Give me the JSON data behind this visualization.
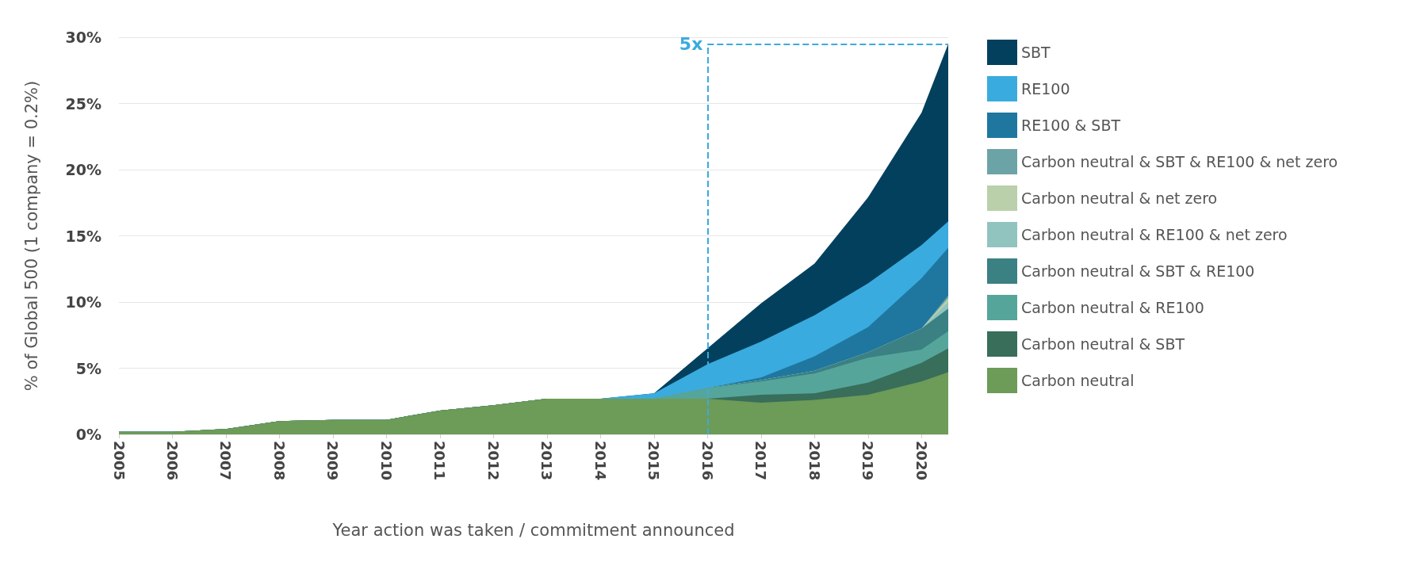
{
  "chart_data": {
    "type": "area",
    "stacked": true,
    "ylabel": "% of Global 500 (1 company = 0.2%)",
    "xlabel": "Year action was taken / commitment announced",
    "x": [
      2005,
      2006,
      2007,
      2008,
      2009,
      2010,
      2011,
      2012,
      2013,
      2014,
      2015,
      2016,
      2017,
      2018,
      2019,
      2020,
      2020.5
    ],
    "xlim": [
      2005,
      2020.5
    ],
    "xticks": [
      2005,
      2006,
      2007,
      2008,
      2009,
      2010,
      2011,
      2012,
      2013,
      2014,
      2015,
      2016,
      2017,
      2018,
      2019,
      2020
    ],
    "ylim": [
      0,
      30
    ],
    "yticks": [
      {
        "value": 0,
        "label": "0%"
      },
      {
        "value": 5,
        "label": "5%"
      },
      {
        "value": 10,
        "label": "10%"
      },
      {
        "value": 15,
        "label": "15%"
      },
      {
        "value": 20,
        "label": "20%"
      },
      {
        "value": 25,
        "label": "25%"
      },
      {
        "value": 30,
        "label": "30%"
      }
    ],
    "grid": "y",
    "legend": "right",
    "series": [
      {
        "name": "Carbon neutral",
        "color": "#6d9b58",
        "values": [
          0.2,
          0.2,
          0.4,
          1.0,
          1.1,
          1.1,
          1.8,
          2.2,
          2.7,
          2.7,
          2.7,
          2.7,
          2.4,
          2.6,
          3.0,
          4.0,
          4.7
        ]
      },
      {
        "name": "Carbon neutral & SBT",
        "color": "#386e5a",
        "values": [
          0,
          0,
          0,
          0,
          0,
          0,
          0,
          0,
          0,
          0,
          0,
          0,
          0.6,
          0.5,
          0.9,
          1.4,
          1.8
        ]
      },
      {
        "name": "Carbon neutral & RE100",
        "color": "#55a59b",
        "values": [
          0,
          0,
          0,
          0,
          0,
          0,
          0,
          0,
          0,
          0,
          0,
          0.8,
          1.0,
          1.5,
          1.9,
          1.0,
          1.3
        ]
      },
      {
        "name": "Carbon neutral & SBT & RE100",
        "color": "#3b8083",
        "values": [
          0,
          0,
          0,
          0,
          0,
          0,
          0,
          0,
          0,
          0,
          0,
          0,
          0.1,
          0.2,
          0.4,
          1.6,
          1.7
        ]
      },
      {
        "name": "Carbon neutral & RE100 & net zero",
        "color": "#91c4be",
        "values": [
          0,
          0,
          0,
          0,
          0,
          0,
          0,
          0,
          0,
          0,
          0,
          0,
          0,
          0,
          0,
          0,
          0.5
        ]
      },
      {
        "name": "Carbon neutral & net zero",
        "color": "#b9d0ab",
        "values": [
          0,
          0,
          0,
          0,
          0,
          0,
          0,
          0,
          0,
          0,
          0,
          0,
          0,
          0,
          0,
          0,
          0.3
        ]
      },
      {
        "name": "Carbon neutral & SBT & RE100 & net zero",
        "color": "#6ca3a6",
        "values": [
          0,
          0,
          0,
          0,
          0,
          0,
          0,
          0,
          0,
          0,
          0,
          0,
          0,
          0,
          0,
          0,
          0.2
        ]
      },
      {
        "name": "RE100 & SBT",
        "color": "#1f77a0",
        "values": [
          0,
          0,
          0,
          0,
          0,
          0,
          0,
          0,
          0,
          0,
          0,
          0,
          0.2,
          1.1,
          1.9,
          3.8,
          3.6
        ]
      },
      {
        "name": "RE100",
        "color": "#3aabde",
        "values": [
          0,
          0,
          0,
          0,
          0,
          0,
          0,
          0,
          0,
          0,
          0.4,
          1.8,
          2.7,
          3.1,
          3.3,
          2.5,
          2.0
        ]
      },
      {
        "name": "SBT",
        "color": "#03405e",
        "values": [
          0,
          0,
          0,
          0,
          0,
          0,
          0,
          0,
          0,
          0,
          0,
          1.2,
          2.9,
          3.9,
          6.5,
          10.0,
          13.4
        ]
      }
    ],
    "ref_lines": [
      {
        "axis": "x",
        "value": 2016,
        "color": "#3aabde",
        "line_style": "dashed"
      },
      {
        "axis": "y",
        "value": 29.5,
        "color": "#3aabde",
        "line_style": "dashed"
      }
    ],
    "annotations": [
      {
        "text": "5x",
        "x": 2016,
        "y": 29.5
      }
    ]
  }
}
